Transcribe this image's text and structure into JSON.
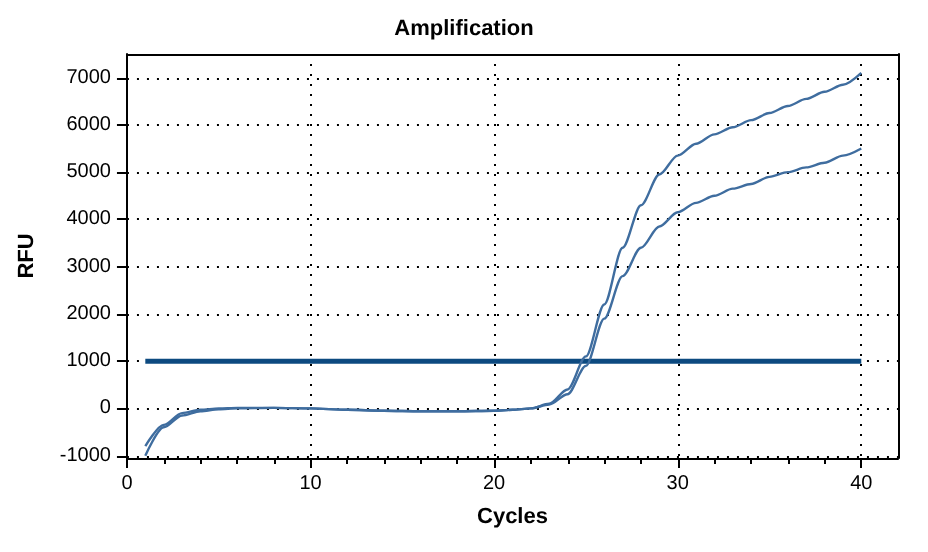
{
  "chart_data": {
    "type": "line",
    "title": "Amplification",
    "xlabel": "Cycles",
    "ylabel": "RFU",
    "x": [
      1,
      2,
      3,
      4,
      5,
      6,
      8,
      10,
      12,
      14,
      16,
      18,
      20,
      21,
      22,
      23,
      24,
      25,
      26,
      27,
      28,
      29,
      30,
      31,
      32,
      33,
      34,
      35,
      36,
      37,
      38,
      39,
      40
    ],
    "series": [
      {
        "color": "#3f6d9f",
        "values": [
          -800,
          -350,
          -100,
          -30,
          0,
          10,
          10,
          0,
          -30,
          -50,
          -60,
          -60,
          -50,
          -30,
          0,
          100,
          400,
          1100,
          2200,
          3400,
          4300,
          4950,
          5350,
          5600,
          5800,
          5950,
          6100,
          6250,
          6400,
          6550,
          6700,
          6850,
          7100
        ]
      },
      {
        "color": "#3f6d9f",
        "values": [
          -1000,
          -400,
          -150,
          -60,
          -20,
          0,
          10,
          0,
          -30,
          -50,
          -60,
          -60,
          -50,
          -30,
          0,
          80,
          300,
          900,
          1900,
          2800,
          3400,
          3850,
          4150,
          4350,
          4500,
          4650,
          4750,
          4900,
          5000,
          5100,
          5200,
          5350,
          5500
        ]
      }
    ],
    "xlim": [
      0,
      42
    ],
    "xticks": [
      0,
      10,
      20,
      30,
      40
    ],
    "ylim": [
      -1050,
      7500
    ],
    "yticks": [
      -1000,
      0,
      1000,
      2000,
      3000,
      4000,
      5000,
      6000,
      7000
    ],
    "ref_lines": [
      {
        "axis": "y",
        "value": 1000,
        "color": "#0d4a80"
      }
    ],
    "grid": true,
    "marker": "none",
    "line_style": "solid"
  }
}
